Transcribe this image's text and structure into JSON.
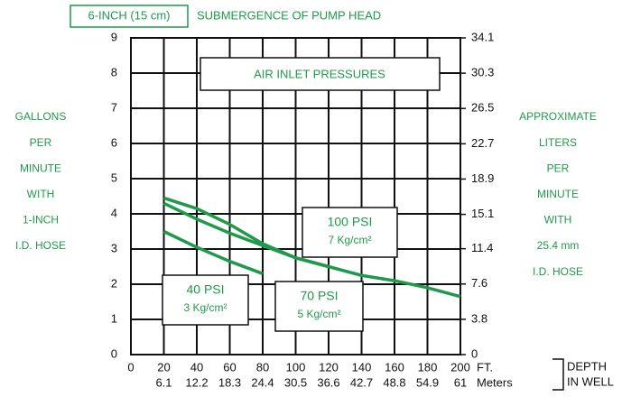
{
  "chart_data": {
    "type": "line",
    "submergence_box": "6-INCH (15 cm)",
    "title": "SUBMERGENCE OF PUMP HEAD",
    "annotation": "AIR INLET PRESSURES",
    "y_label_lines": [
      "GALLONS",
      "PER",
      "MINUTE",
      "WITH",
      "1-INCH",
      "I.D. HOSE"
    ],
    "y2_label_lines": [
      "APPROXIMATE",
      "LITERS",
      "PER",
      "MINUTE",
      "WITH",
      "25.4 mm",
      "I.D. HOSE"
    ],
    "x_unit": "FT.",
    "x2_unit": "Meters",
    "x_label_lines": [
      "DEPTH",
      "IN WELL"
    ],
    "x": [
      20,
      40,
      60,
      80,
      100,
      120,
      140,
      160,
      180,
      200
    ],
    "series": [
      {
        "name": "40 PSI",
        "sublabel": "3 Kg/cm²",
        "color": "#1f9a4c",
        "values": [
          3.5,
          3.05,
          2.65,
          2.3,
          null,
          null,
          null,
          null,
          null,
          null
        ]
      },
      {
        "name": "70 PSI",
        "sublabel": "5 Kg/cm²",
        "color": "#1f9a4c",
        "values": [
          4.3,
          3.85,
          3.45,
          3.1,
          2.75,
          2.5,
          null,
          null,
          null,
          null
        ]
      },
      {
        "name": "100 PSI",
        "sublabel": "7 Kg/cm²",
        "color": "#1f9a4c",
        "values": [
          4.45,
          4.15,
          3.7,
          3.15,
          2.75,
          2.5,
          2.25,
          2.1,
          1.9,
          1.65
        ]
      }
    ],
    "xlim": [
      0,
      200
    ],
    "xticks": [
      0,
      20,
      40,
      60,
      80,
      100,
      120,
      140,
      160,
      180,
      200
    ],
    "x2lim": [
      0,
      61
    ],
    "x2ticks": [
      6.1,
      12.2,
      18.3,
      24.4,
      30.5,
      36.6,
      42.7,
      48.8,
      54.9,
      61
    ],
    "ylim": [
      0,
      9
    ],
    "yticks": [
      0,
      1,
      2,
      3,
      4,
      5,
      6,
      7,
      8,
      9
    ],
    "y2lim": [
      0,
      34.1
    ],
    "y2ticks": [
      0,
      3.8,
      7.6,
      11.4,
      15.1,
      18.9,
      22.7,
      26.5,
      30.3,
      34.1
    ],
    "grid": true
  }
}
